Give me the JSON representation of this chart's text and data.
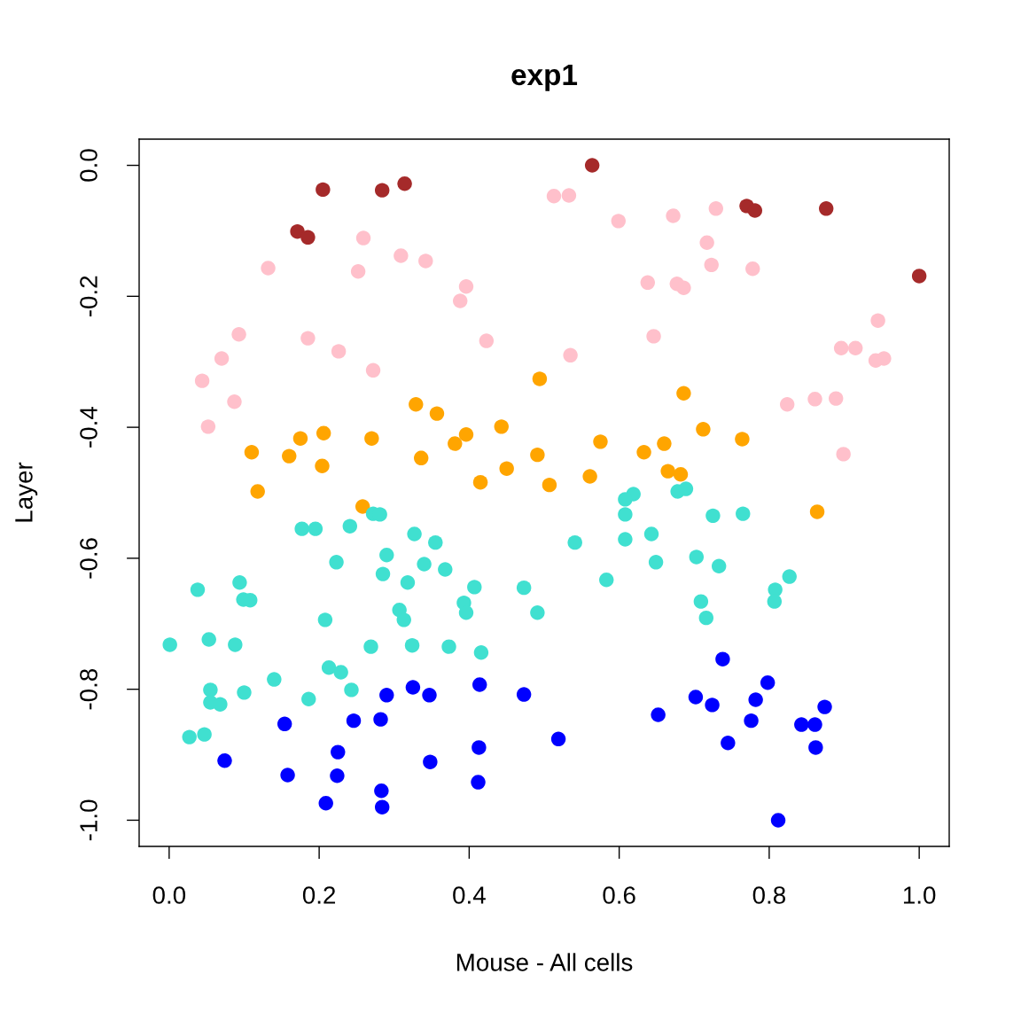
{
  "chart_data": {
    "type": "scatter",
    "title": "exp1",
    "xlabel": "Mouse - All cells",
    "ylabel": "Layer",
    "marker": "circle",
    "xlim": [
      -0.04,
      1.04
    ],
    "ylim": [
      -1.04,
      0.04
    ],
    "xticks": [
      {
        "value": 0,
        "label": "0.0"
      },
      {
        "value": 0.2,
        "label": "0.2"
      },
      {
        "value": 0.4,
        "label": "0.4"
      },
      {
        "value": 0.6,
        "label": "0.6"
      },
      {
        "value": 0.8,
        "label": "0.8"
      },
      {
        "value": 1,
        "label": "1.0"
      }
    ],
    "yticks": [
      {
        "value": 0,
        "label": "0.0"
      },
      {
        "value": -0.2,
        "label": "-0.2"
      },
      {
        "value": -0.4,
        "label": "-0.4"
      },
      {
        "value": -0.6,
        "label": "-0.6"
      },
      {
        "value": -0.8,
        "label": "-0.8"
      },
      {
        "value": -1,
        "label": "-1.0"
      }
    ],
    "series": [
      {
        "color": "#ffc0cb",
        "x": [
          0.259,
          0.309,
          0.342,
          0.132,
          0.252,
          0.396,
          0.388,
          0.093,
          0.185,
          0.226,
          0.423,
          0.07,
          0.044,
          0.272,
          0.087,
          0.052,
          0.513,
          0.533,
          0.599,
          0.672,
          0.729,
          0.717,
          0.723,
          0.778,
          0.638,
          0.677,
          0.686,
          0.646,
          0.535,
          0.945,
          0.896,
          0.915,
          0.942,
          0.953,
          0.824,
          0.861,
          0.889,
          0.899
        ],
        "values": [
          -0.111,
          -0.138,
          -0.146,
          -0.157,
          -0.162,
          -0.185,
          -0.207,
          -0.258,
          -0.264,
          -0.284,
          -0.268,
          -0.295,
          -0.329,
          -0.313,
          -0.361,
          -0.399,
          -0.047,
          -0.046,
          -0.085,
          -0.077,
          -0.066,
          -0.118,
          -0.152,
          -0.158,
          -0.179,
          -0.181,
          -0.187,
          -0.261,
          -0.29,
          -0.237,
          -0.279,
          -0.279,
          -0.298,
          -0.295,
          -0.365,
          -0.357,
          -0.356,
          -0.441
        ]
      },
      {
        "color": "#a52a2a",
        "x": [
          0.171,
          0.185,
          0.205,
          0.284,
          0.314,
          0.564,
          0.77,
          0.781,
          0.876,
          1.0
        ],
        "values": [
          -0.101,
          -0.11,
          -0.037,
          -0.038,
          -0.028,
          0.0,
          -0.062,
          -0.069,
          -0.066,
          -0.169
        ]
      },
      {
        "color": "#ffa500",
        "x": [
          0.494,
          0.329,
          0.357,
          0.443,
          0.396,
          0.381,
          0.175,
          0.206,
          0.27,
          0.11,
          0.16,
          0.204,
          0.336,
          0.491,
          0.45,
          0.415,
          0.118,
          0.507,
          0.686,
          0.712,
          0.764,
          0.575,
          0.66,
          0.633,
          0.665,
          0.682,
          0.561,
          0.258,
          0.864
        ],
        "values": [
          -0.326,
          -0.365,
          -0.379,
          -0.399,
          -0.411,
          -0.425,
          -0.417,
          -0.409,
          -0.417,
          -0.438,
          -0.444,
          -0.459,
          -0.447,
          -0.442,
          -0.463,
          -0.484,
          -0.498,
          -0.488,
          -0.348,
          -0.403,
          -0.418,
          -0.422,
          -0.425,
          -0.438,
          -0.467,
          -0.472,
          -0.475,
          -0.521,
          -0.529
        ]
      },
      {
        "color": "#40e0d0",
        "x": [
          0.272,
          0.281,
          0.177,
          0.195,
          0.241,
          0.327,
          0.355,
          0.223,
          0.29,
          0.34,
          0.368,
          0.285,
          0.318,
          0.407,
          0.473,
          0.038,
          0.094,
          0.099,
          0.108,
          0.393,
          0.396,
          0.491,
          0.307,
          0.313,
          0.208,
          0.001,
          0.053,
          0.088,
          0.269,
          0.324,
          0.373,
          0.416,
          0.213,
          0.229,
          0.14,
          0.055,
          0.1,
          0.186,
          0.243,
          0.055,
          0.068,
          0.027,
          0.047,
          0.619,
          0.608,
          0.678,
          0.689,
          0.608,
          0.725,
          0.765,
          0.541,
          0.608,
          0.643,
          0.649,
          0.703,
          0.733,
          0.583,
          0.827,
          0.808,
          0.807,
          0.709,
          0.716
        ],
        "values": [
          -0.532,
          -0.533,
          -0.555,
          -0.555,
          -0.551,
          -0.563,
          -0.576,
          -0.606,
          -0.595,
          -0.609,
          -0.617,
          -0.624,
          -0.637,
          -0.644,
          -0.645,
          -0.648,
          -0.637,
          -0.663,
          -0.664,
          -0.668,
          -0.683,
          -0.683,
          -0.679,
          -0.694,
          -0.694,
          -0.732,
          -0.724,
          -0.732,
          -0.735,
          -0.733,
          -0.735,
          -0.744,
          -0.767,
          -0.774,
          -0.785,
          -0.801,
          -0.805,
          -0.815,
          -0.801,
          -0.82,
          -0.823,
          -0.873,
          -0.869,
          -0.502,
          -0.51,
          -0.498,
          -0.494,
          -0.533,
          -0.535,
          -0.532,
          -0.576,
          -0.571,
          -0.563,
          -0.606,
          -0.598,
          -0.612,
          -0.633,
          -0.628,
          -0.648,
          -0.666,
          -0.666,
          -0.691
        ]
      },
      {
        "color": "#0000ff",
        "x": [
          0.29,
          0.325,
          0.347,
          0.414,
          0.473,
          0.154,
          0.246,
          0.282,
          0.225,
          0.413,
          0.348,
          0.074,
          0.158,
          0.224,
          0.412,
          0.283,
          0.209,
          0.284,
          0.738,
          0.798,
          0.702,
          0.724,
          0.782,
          0.874,
          0.652,
          0.776,
          0.843,
          0.861,
          0.519,
          0.745,
          0.862,
          0.812
        ],
        "values": [
          -0.809,
          -0.797,
          -0.809,
          -0.793,
          -0.808,
          -0.853,
          -0.848,
          -0.846,
          -0.896,
          -0.889,
          -0.911,
          -0.909,
          -0.931,
          -0.932,
          -0.942,
          -0.955,
          -0.974,
          -0.98,
          -0.754,
          -0.79,
          -0.812,
          -0.824,
          -0.816,
          -0.827,
          -0.839,
          -0.848,
          -0.854,
          -0.854,
          -0.876,
          -0.882,
          -0.889,
          -1.0
        ]
      }
    ]
  }
}
